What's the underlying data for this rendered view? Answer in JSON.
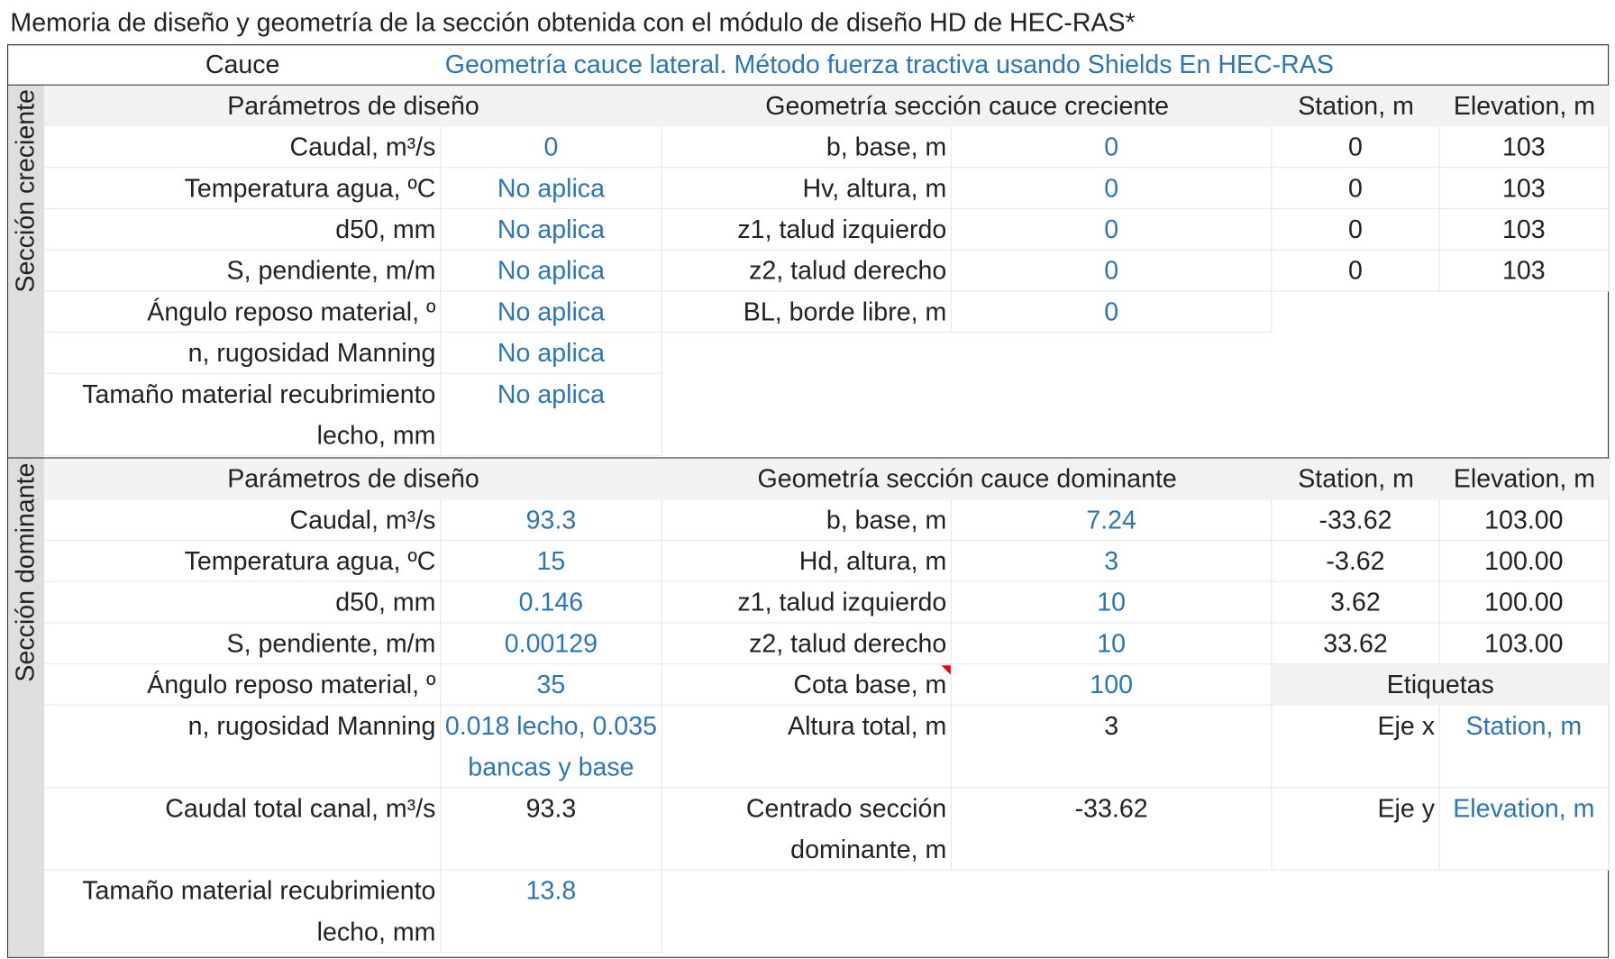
{
  "title": "Memoria de diseño y geometría de la sección obtenida con el módulo de diseño HD de HEC-RAS*",
  "header": {
    "label": "Cauce",
    "value": "Geometría cauce lateral. Método fuerza tractiva usando Shields En HEC-RAS"
  },
  "sections": [
    {
      "side_label": "Sección creciente",
      "params_header": "Parámetros de diseño",
      "params": [
        [
          "Caudal, m³/s",
          "0"
        ],
        [
          "Temperatura agua, ºC",
          "No aplica"
        ],
        [
          "d50, mm",
          "No aplica"
        ],
        [
          "S, pendiente, m/m",
          "No aplica"
        ],
        [
          "Ángulo reposo material, º",
          "No aplica"
        ],
        [
          "n, rugosidad Manning",
          "No aplica"
        ],
        [
          "Tamaño material recubrimiento lecho, mm",
          "No aplica"
        ]
      ],
      "geometry_header": "Geometría sección cauce creciente",
      "geometry": [
        [
          "b, base, m",
          "0"
        ],
        [
          "Hv, altura, m",
          "0"
        ],
        [
          "z1, talud izquierdo",
          "0"
        ],
        [
          "z2, talud derecho",
          "0"
        ],
        [
          "BL, borde libre, m",
          "0"
        ]
      ],
      "coords_headers": [
        "Station, m",
        "Elevation, m"
      ],
      "coords": [
        [
          "0",
          "103"
        ],
        [
          "0",
          "103"
        ],
        [
          "0",
          "103"
        ],
        [
          "0",
          "103"
        ]
      ]
    },
    {
      "side_label": "Sección dominante",
      "params_header": "Parámetros de diseño",
      "params": [
        [
          "Caudal, m³/s",
          "93.3"
        ],
        [
          "Temperatura agua, ºC",
          "15"
        ],
        [
          "d50, mm",
          "0.146"
        ],
        [
          "S, pendiente, m/m",
          "0.00129"
        ],
        [
          "Ángulo reposo material, º",
          "35"
        ],
        [
          "n, rugosidad Manning",
          "0.018 lecho, 0.035 bancas y base"
        ],
        [
          "Caudal total canal, m³/s",
          "93.3"
        ],
        [
          "Tamaño material recubrimiento lecho, mm",
          "13.8"
        ]
      ],
      "geometry_header": "Geometría sección cauce dominante",
      "geometry": [
        [
          "b, base, m",
          "7.24"
        ],
        [
          "Hd, altura, m",
          "3"
        ],
        [
          "z1, talud izquierdo",
          "10"
        ],
        [
          "z2, talud derecho",
          "10"
        ],
        [
          "Cota base, m",
          "100"
        ],
        [
          "Altura total, m",
          "3"
        ],
        [
          "Centrado sección dominante, m",
          "-33.62"
        ]
      ],
      "coords_headers": [
        "Station, m",
        "Elevation, m"
      ],
      "coords": [
        [
          "-33.62",
          "103.00"
        ],
        [
          "-3.62",
          "100.00"
        ],
        [
          "3.62",
          "100.00"
        ],
        [
          "33.62",
          "103.00"
        ]
      ],
      "labels": {
        "title": "Etiquetas",
        "rows": [
          [
            "Eje x",
            "Station, m"
          ],
          [
            "Eje y",
            "Elevation, m"
          ]
        ]
      }
    }
  ]
}
